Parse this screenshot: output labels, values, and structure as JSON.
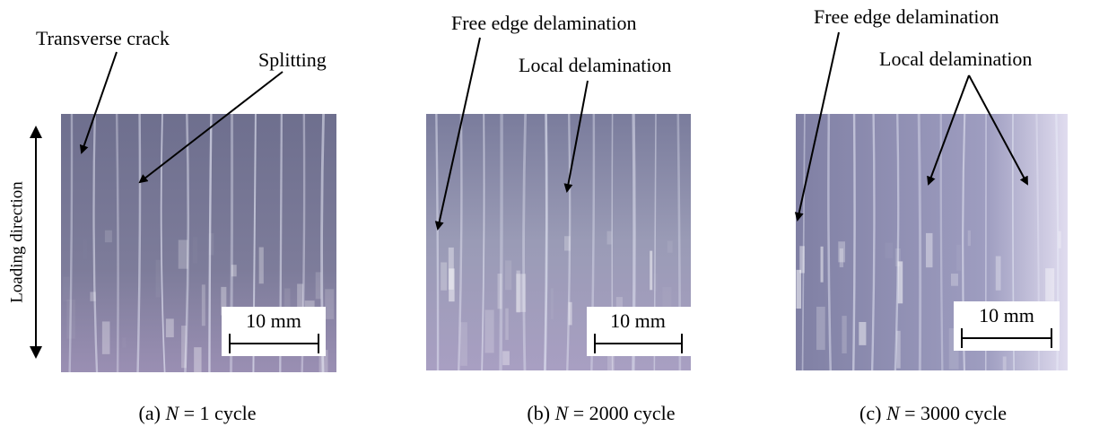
{
  "panels": [
    {
      "caption": {
        "prefix": "(a) ",
        "variable": "N",
        "suffix": " = 1 cycle"
      },
      "scale_bar": "10 mm",
      "annotations": [
        "Transverse crack",
        "Splitting"
      ]
    },
    {
      "caption": {
        "prefix": "(b) ",
        "variable": "N",
        "suffix": " = 2000 cycle"
      },
      "scale_bar": "10 mm",
      "annotations": [
        "Free edge delamination",
        "Local delamination"
      ]
    },
    {
      "caption": {
        "prefix": "(c) ",
        "variable": "N",
        "suffix": " = 3000 cycle"
      },
      "scale_bar": "10 mm",
      "annotations": [
        "Free edge delamination",
        "Local delamination"
      ]
    }
  ],
  "loading_direction": "Loading direction"
}
